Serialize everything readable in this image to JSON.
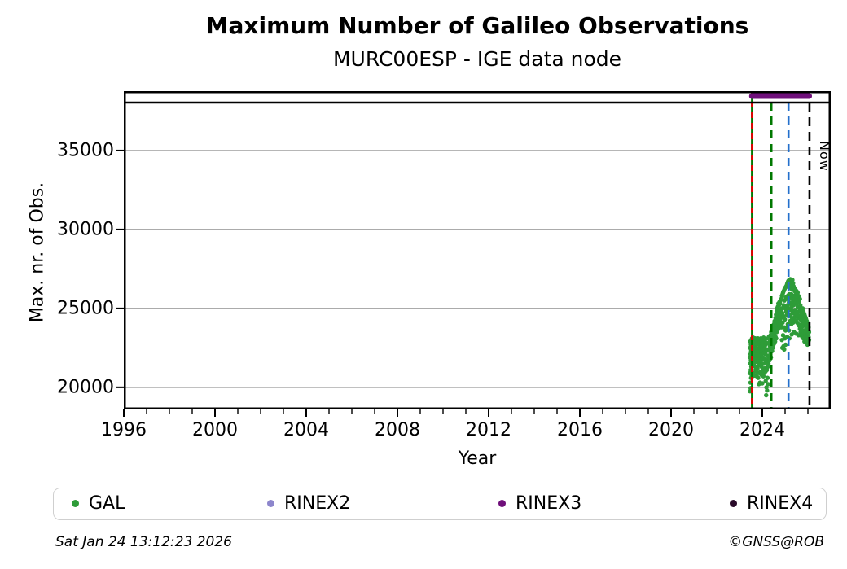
{
  "figure": {
    "footer_left": "Sat Jan 24 13:12:23 2026",
    "footer_right": "©GNSS@ROB"
  },
  "chart_data": {
    "type": "scatter",
    "title": "Maximum Number of Galileo Observations",
    "subtitle": "MURC00ESP - IGE data node",
    "xlabel": "Year",
    "ylabel": "Max. nr. of Obs.",
    "xlim": [
      1996,
      2027
    ],
    "ylim": [
      18600,
      38760
    ],
    "xticks": [
      1996,
      2000,
      2004,
      2008,
      2012,
      2016,
      2020,
      2024
    ],
    "xticks_minor_step": 1,
    "yticks": [
      20000,
      25000,
      30000,
      35000
    ],
    "grid": "horizontal",
    "colors": {
      "grid": "#ababab",
      "axis": "#000000"
    },
    "legend": [
      {
        "label": "GAL",
        "color": "#2e9c38"
      },
      {
        "label": "RINEX2",
        "color": "#8d86cc"
      },
      {
        "label": "RINEX3",
        "color": "#6f0f7a"
      },
      {
        "label": "RINEX4",
        "color": "#2a0a29"
      }
    ],
    "annotations": {
      "band_separator_value": 38040,
      "availability_bars": [
        {
          "name": "RINEX3",
          "color": "#6f0f7a",
          "start": 2023.42,
          "end": 2026.18,
          "value": 38450
        }
      ],
      "event_lines": [
        {
          "name": "event-line-green-solid",
          "x": 2023.55,
          "color": "#007800",
          "from_top": true,
          "overlay": {
            "name": "event-line-red-dashed",
            "color": "#e00000",
            "dash": "7 6"
          }
        },
        {
          "name": "event-line-green-dashed",
          "x": 2024.4,
          "color": "#007800",
          "dash": "10 7"
        },
        {
          "name": "event-line-blue-dashed",
          "x": 2025.15,
          "color": "#2470cc",
          "dash": "10 7"
        },
        {
          "name": "now-line",
          "x": 2026.07,
          "color": "#000000",
          "dash": "11 7"
        }
      ],
      "now_line": {
        "x": 2026.07,
        "label": "Now"
      }
    },
    "series": [
      {
        "name": "GAL",
        "color": "#2e9c38",
        "rows": [
          [
            2023.45,
            21900,
            20900
          ],
          [
            2023.46,
            22500,
            19750
          ],
          [
            2023.47,
            21500,
            22900
          ],
          [
            2023.48,
            20300,
            22100
          ],
          [
            2023.49,
            21100,
            19950
          ],
          [
            2023.5,
            22700,
            21700
          ],
          [
            2023.51,
            20600,
            22300
          ],
          [
            2023.52,
            23000,
            21300
          ],
          [
            2023.53,
            21900,
            20800
          ],
          [
            2023.54,
            22500,
            21100
          ],
          [
            2023.55,
            23100,
            21600
          ],
          [
            2023.57,
            22000,
            20700
          ],
          [
            2023.58,
            22800,
            21400
          ],
          [
            2023.6,
            23150,
            21900
          ],
          [
            2023.61,
            22300,
            20900
          ],
          [
            2023.63,
            22600,
            21500
          ],
          [
            2023.64,
            23000,
            22100
          ],
          [
            2023.66,
            21700,
            22400
          ],
          [
            2023.67,
            20750,
            22900
          ],
          [
            2023.69,
            21300,
            22600
          ],
          [
            2023.7,
            22000,
            23100
          ],
          [
            2023.72,
            21100,
            22500
          ],
          [
            2023.73,
            22800,
            21800
          ],
          [
            2023.75,
            23000,
            21000
          ],
          [
            2023.76,
            22200,
            20700
          ],
          [
            2023.78,
            21600,
            22900
          ],
          [
            2023.79,
            22400,
            21200
          ],
          [
            2023.81,
            23100,
            21900
          ],
          [
            2023.82,
            22000,
            20600
          ],
          [
            2023.84,
            21400,
            22700
          ],
          [
            2023.85,
            20200,
            22200
          ],
          [
            2023.87,
            21800,
            23000
          ],
          [
            2023.88,
            22500,
            20900
          ],
          [
            2023.9,
            20300,
            22000
          ],
          [
            2023.91,
            21600,
            22850
          ],
          [
            2023.93,
            22300,
            21000
          ],
          [
            2023.94,
            23100,
            21700
          ],
          [
            2023.96,
            22600,
            20800
          ],
          [
            2023.97,
            21300,
            22100
          ],
          [
            2023.99,
            22800,
            21500
          ],
          [
            2024.0,
            20250,
            22400
          ],
          [
            2024.02,
            21900,
            23050
          ],
          [
            2024.03,
            22300,
            21100
          ],
          [
            2024.05,
            20700,
            22600
          ],
          [
            2024.06,
            21800,
            23150
          ],
          [
            2024.08,
            22200,
            20900
          ],
          [
            2024.09,
            23000,
            21500
          ],
          [
            2024.11,
            22500,
            21200
          ],
          [
            2024.12,
            21800,
            22900
          ],
          [
            2024.14,
            22100,
            21000
          ],
          [
            2024.15,
            22700,
            20400
          ],
          [
            2024.17,
            21600,
            19500
          ],
          [
            2024.18,
            22300,
            20000
          ],
          [
            2024.2,
            21100,
            22800
          ],
          [
            2024.21,
            19800,
            21700
          ],
          [
            2024.23,
            20600,
            22400
          ],
          [
            2024.24,
            23100,
            21300
          ],
          [
            2024.26,
            22000,
            20200
          ],
          [
            2024.27,
            22800,
            21500
          ],
          [
            2024.29,
            21900,
            23200
          ],
          [
            2024.31,
            22400,
            21700
          ],
          [
            2024.33,
            23000,
            22000
          ],
          [
            2024.34,
            22600,
            21800
          ],
          [
            2024.36,
            23300,
            22200
          ],
          [
            2024.38,
            22800,
            21900
          ],
          [
            2024.39,
            23500,
            22400
          ],
          [
            2024.41,
            22700,
            23100
          ],
          [
            2024.43,
            23600,
            22300
          ],
          [
            2024.44,
            22900,
            23800
          ],
          [
            2024.46,
            23200,
            22500
          ],
          [
            2024.48,
            23900,
            23000
          ],
          [
            2024.49,
            22700,
            23400
          ],
          [
            2024.51,
            24000,
            23100
          ],
          [
            2024.53,
            23500,
            22800
          ],
          [
            2024.54,
            24200,
            23300
          ],
          [
            2024.56,
            23700,
            22900
          ],
          [
            2024.58,
            24400,
            23200
          ],
          [
            2024.6,
            23800,
            24600
          ],
          [
            2024.61,
            23100,
            24100
          ],
          [
            2024.63,
            24800,
            23500
          ],
          [
            2024.65,
            24200,
            25000
          ],
          [
            2024.66,
            23600,
            24500
          ],
          [
            2024.68,
            25100,
            23900
          ],
          [
            2024.7,
            24300,
            25300
          ],
          [
            2024.71,
            23700,
            24700
          ],
          [
            2024.73,
            25200,
            24000
          ],
          [
            2024.75,
            24500,
            25400
          ],
          [
            2024.76,
            23900,
            24800
          ],
          [
            2024.78,
            25300,
            24200
          ],
          [
            2024.8,
            24600,
            25500
          ],
          [
            2024.81,
            24000,
            24900
          ],
          [
            2024.83,
            25600,
            24400
          ],
          [
            2024.85,
            25000,
            23800
          ],
          [
            2024.86,
            25800,
            23000
          ],
          [
            2024.88,
            24700,
            22500
          ],
          [
            2024.89,
            25900,
            24100
          ],
          [
            2024.91,
            23300,
            26000
          ],
          [
            2024.93,
            24500,
            22600
          ],
          [
            2024.94,
            26100,
            25200
          ],
          [
            2024.96,
            23800,
            22400
          ],
          [
            2024.97,
            25500,
            26200
          ],
          [
            2024.99,
            24300,
            23100
          ],
          [
            2025.0,
            26300,
            25000
          ],
          [
            2025.02,
            23600,
            22700
          ],
          [
            2025.03,
            25700,
            26350
          ],
          [
            2025.05,
            24800,
            26400
          ],
          [
            2025.07,
            25600,
            23800
          ],
          [
            2025.08,
            26500,
            24600
          ],
          [
            2025.09,
            23200
          ],
          [
            2025.1,
            25200,
            26600
          ],
          [
            2025.12,
            24000,
            25800
          ],
          [
            2025.13,
            26700,
            25000
          ],
          [
            2025.15,
            24500,
            26750
          ],
          [
            2025.17,
            25400,
            23600
          ],
          [
            2025.18,
            26800,
            25900
          ],
          [
            2025.19,
            23100
          ],
          [
            2025.2,
            24900,
            26300
          ],
          [
            2025.22,
            25700,
            24200
          ],
          [
            2025.23,
            26850,
            25300
          ],
          [
            2025.25,
            24600,
            26500
          ],
          [
            2025.27,
            25900,
            24000
          ],
          [
            2025.28,
            26700,
            25100
          ],
          [
            2025.29,
            23350
          ],
          [
            2025.3,
            24400,
            26200
          ],
          [
            2025.32,
            25600,
            26800
          ],
          [
            2025.33,
            24800,
            25400
          ],
          [
            2025.35,
            26600,
            24100
          ],
          [
            2025.37,
            25200,
            26400
          ],
          [
            2025.38,
            24700,
            25800
          ],
          [
            2025.39,
            23500
          ],
          [
            2025.4,
            26300,
            24300
          ],
          [
            2025.42,
            25500,
            26100
          ],
          [
            2025.43,
            24900,
            25700
          ],
          [
            2025.45,
            26200,
            24500
          ],
          [
            2025.47,
            25800,
            24700
          ],
          [
            2025.48,
            26000,
            24200
          ],
          [
            2025.49,
            23400
          ],
          [
            2025.5,
            25300,
            26100
          ],
          [
            2025.52,
            24600,
            25700
          ],
          [
            2025.53,
            25900,
            24100
          ],
          [
            2025.55,
            25100,
            26000
          ],
          [
            2025.57,
            24400,
            25500
          ],
          [
            2025.58,
            25800,
            24000
          ],
          [
            2025.59,
            23300
          ],
          [
            2025.6,
            24800,
            25400
          ],
          [
            2025.62,
            25700,
            23900
          ],
          [
            2025.63,
            25000,
            24500
          ],
          [
            2025.65,
            25600,
            23700
          ],
          [
            2025.67,
            24300,
            25200
          ],
          [
            2025.68,
            24900,
            23500
          ],
          [
            2025.7,
            24700,
            23300
          ],
          [
            2025.72,
            25000,
            24000
          ],
          [
            2025.73,
            23800,
            24600
          ],
          [
            2025.75,
            24900,
            23200
          ],
          [
            2025.77,
            24200,
            25000
          ],
          [
            2025.78,
            23600,
            24400
          ],
          [
            2025.8,
            24800,
            23100
          ],
          [
            2025.82,
            24100,
            24700
          ],
          [
            2025.83,
            23400,
            24300
          ],
          [
            2025.85,
            24600,
            22900
          ],
          [
            2025.87,
            23900,
            24500
          ],
          [
            2025.88,
            23200,
            24200
          ],
          [
            2025.9,
            24400,
            23000
          ],
          [
            2025.92,
            23700,
            24300
          ],
          [
            2025.93,
            22800,
            23900
          ],
          [
            2025.95,
            24200,
            23300
          ],
          [
            2025.97,
            23600,
            24100
          ],
          [
            2025.98,
            22700,
            23500
          ],
          [
            2026.0,
            24000,
            23100
          ],
          [
            2026.02,
            23400,
            22900
          ],
          [
            2026.03,
            23800,
            23200
          ],
          [
            2026.05,
            23000,
            23500
          ]
        ]
      }
    ]
  }
}
